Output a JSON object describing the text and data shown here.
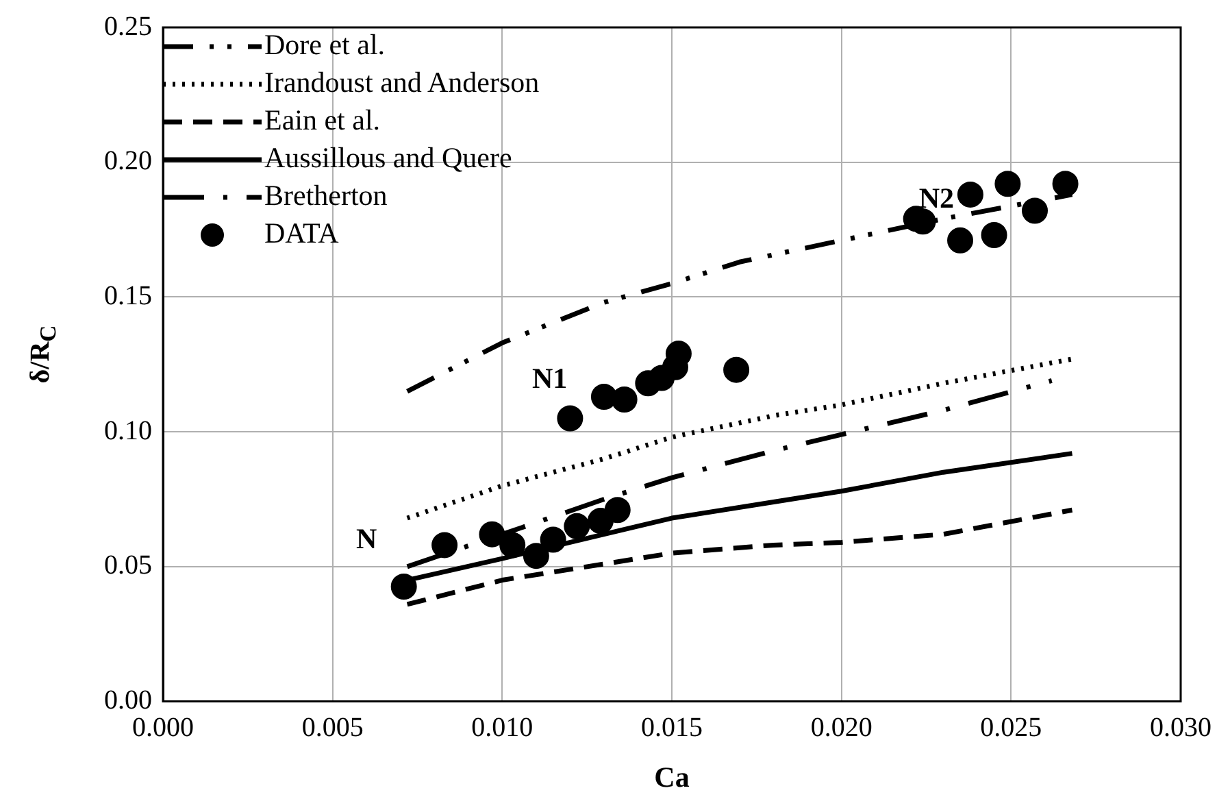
{
  "chart_data": {
    "type": "line",
    "xlabel": "Ca",
    "ylabel": "δ/R$_{C}$",
    "xlim": [
      0,
      0.03
    ],
    "xticks": [
      {
        "value": 0,
        "label": "0.000"
      },
      {
        "value": 0.005,
        "label": "0.005"
      },
      {
        "value": 0.01,
        "label": "0.010"
      },
      {
        "value": 0.015,
        "label": "0.015"
      },
      {
        "value": 0.02,
        "label": "0.020"
      },
      {
        "value": 0.025,
        "label": "0.025"
      },
      {
        "value": 0.03,
        "label": "0.030"
      }
    ],
    "ylim": [
      0,
      0.25
    ],
    "yticks": [
      {
        "value": 0,
        "label": "0.00"
      },
      {
        "value": 0.05,
        "label": "0.05"
      },
      {
        "value": 0.1,
        "label": "0.10"
      },
      {
        "value": 0.15,
        "label": "0.15"
      },
      {
        "value": 0.2,
        "label": "0.20"
      },
      {
        "value": 0.25,
        "label": "0.25"
      }
    ],
    "grid": true,
    "legend": "top left",
    "series": [
      {
        "name": "Dore et al.",
        "color": "#000000",
        "line_style": "dashed",
        "marker": "none",
        "x": [
          0.0072,
          0.01,
          0.013,
          0.015,
          0.017,
          0.02,
          0.023,
          0.0268
        ],
        "values": [
          0.115,
          0.133,
          0.148,
          0.155,
          0.163,
          0.171,
          0.179,
          0.188
        ]
      },
      {
        "name": "Irandoust and Anderson",
        "color": "#000000",
        "line_style": "dotted",
        "marker": "none",
        "x": [
          0.0072,
          0.01,
          0.013,
          0.015,
          0.018,
          0.02,
          0.023,
          0.0268
        ],
        "values": [
          0.068,
          0.08,
          0.09,
          0.098,
          0.106,
          0.11,
          0.118,
          0.127
        ]
      },
      {
        "name": "Eain et al.",
        "color": "#000000",
        "line_style": "dashed",
        "marker": "none",
        "x": [
          0.0072,
          0.01,
          0.013,
          0.015,
          0.018,
          0.02,
          0.023,
          0.0268
        ],
        "values": [
          0.036,
          0.045,
          0.051,
          0.055,
          0.058,
          0.059,
          0.062,
          0.071
        ]
      },
      {
        "name": "Aussillous and Quere",
        "color": "#000000",
        "line_style": "solid",
        "marker": "none",
        "x": [
          0.0072,
          0.01,
          0.013,
          0.015,
          0.018,
          0.02,
          0.023,
          0.0268
        ],
        "values": [
          0.045,
          0.053,
          0.062,
          0.068,
          0.074,
          0.078,
          0.085,
          0.092
        ]
      },
      {
        "name": "Bretherton",
        "color": "#000000",
        "line_style": "dashed",
        "marker": "none",
        "x": [
          0.0072,
          0.01,
          0.013,
          0.015,
          0.018,
          0.02,
          0.023,
          0.0262
        ],
        "values": [
          0.05,
          0.062,
          0.075,
          0.083,
          0.093,
          0.099,
          0.108,
          0.119
        ]
      },
      {
        "name": "DATA",
        "type": "scatter",
        "color": "#000000",
        "marker": "circle",
        "x": [
          0.0071,
          0.0083,
          0.0097,
          0.0103,
          0.011,
          0.0115,
          0.0122,
          0.0129,
          0.0134,
          0.012,
          0.013,
          0.0136,
          0.0143,
          0.0147,
          0.0151,
          0.0152,
          0.0169,
          0.0222,
          0.0224,
          0.0238,
          0.0235,
          0.0245,
          0.0249,
          0.0257,
          0.0266
        ],
        "values": [
          0.0426,
          0.058,
          0.062,
          0.058,
          0.054,
          0.06,
          0.065,
          0.067,
          0.071,
          0.105,
          0.113,
          0.112,
          0.118,
          0.12,
          0.124,
          0.129,
          0.123,
          0.179,
          0.178,
          0.188,
          0.171,
          0.173,
          0.192,
          0.182,
          0.192
        ]
      }
    ],
    "annotations": [
      "N",
      "N1",
      "N2"
    ]
  }
}
